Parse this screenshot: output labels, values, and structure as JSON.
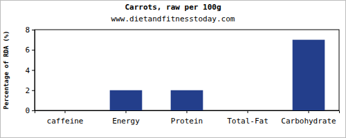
{
  "chart_data": {
    "type": "bar",
    "title": "Carrots, raw per 100g",
    "subtitle": "www.dietandfitnesstoday.com",
    "y_label": "Percentage of RDA (%)",
    "categories": [
      "caffeine",
      "Energy",
      "Protein",
      "Total-Fat",
      "Carbohydrate"
    ],
    "values": [
      0,
      2,
      2,
      0,
      7
    ],
    "color": "#233e8b",
    "ylim": [
      0,
      8
    ],
    "yticks": [
      0,
      2,
      4,
      6,
      8
    ],
    "grid": false
  }
}
